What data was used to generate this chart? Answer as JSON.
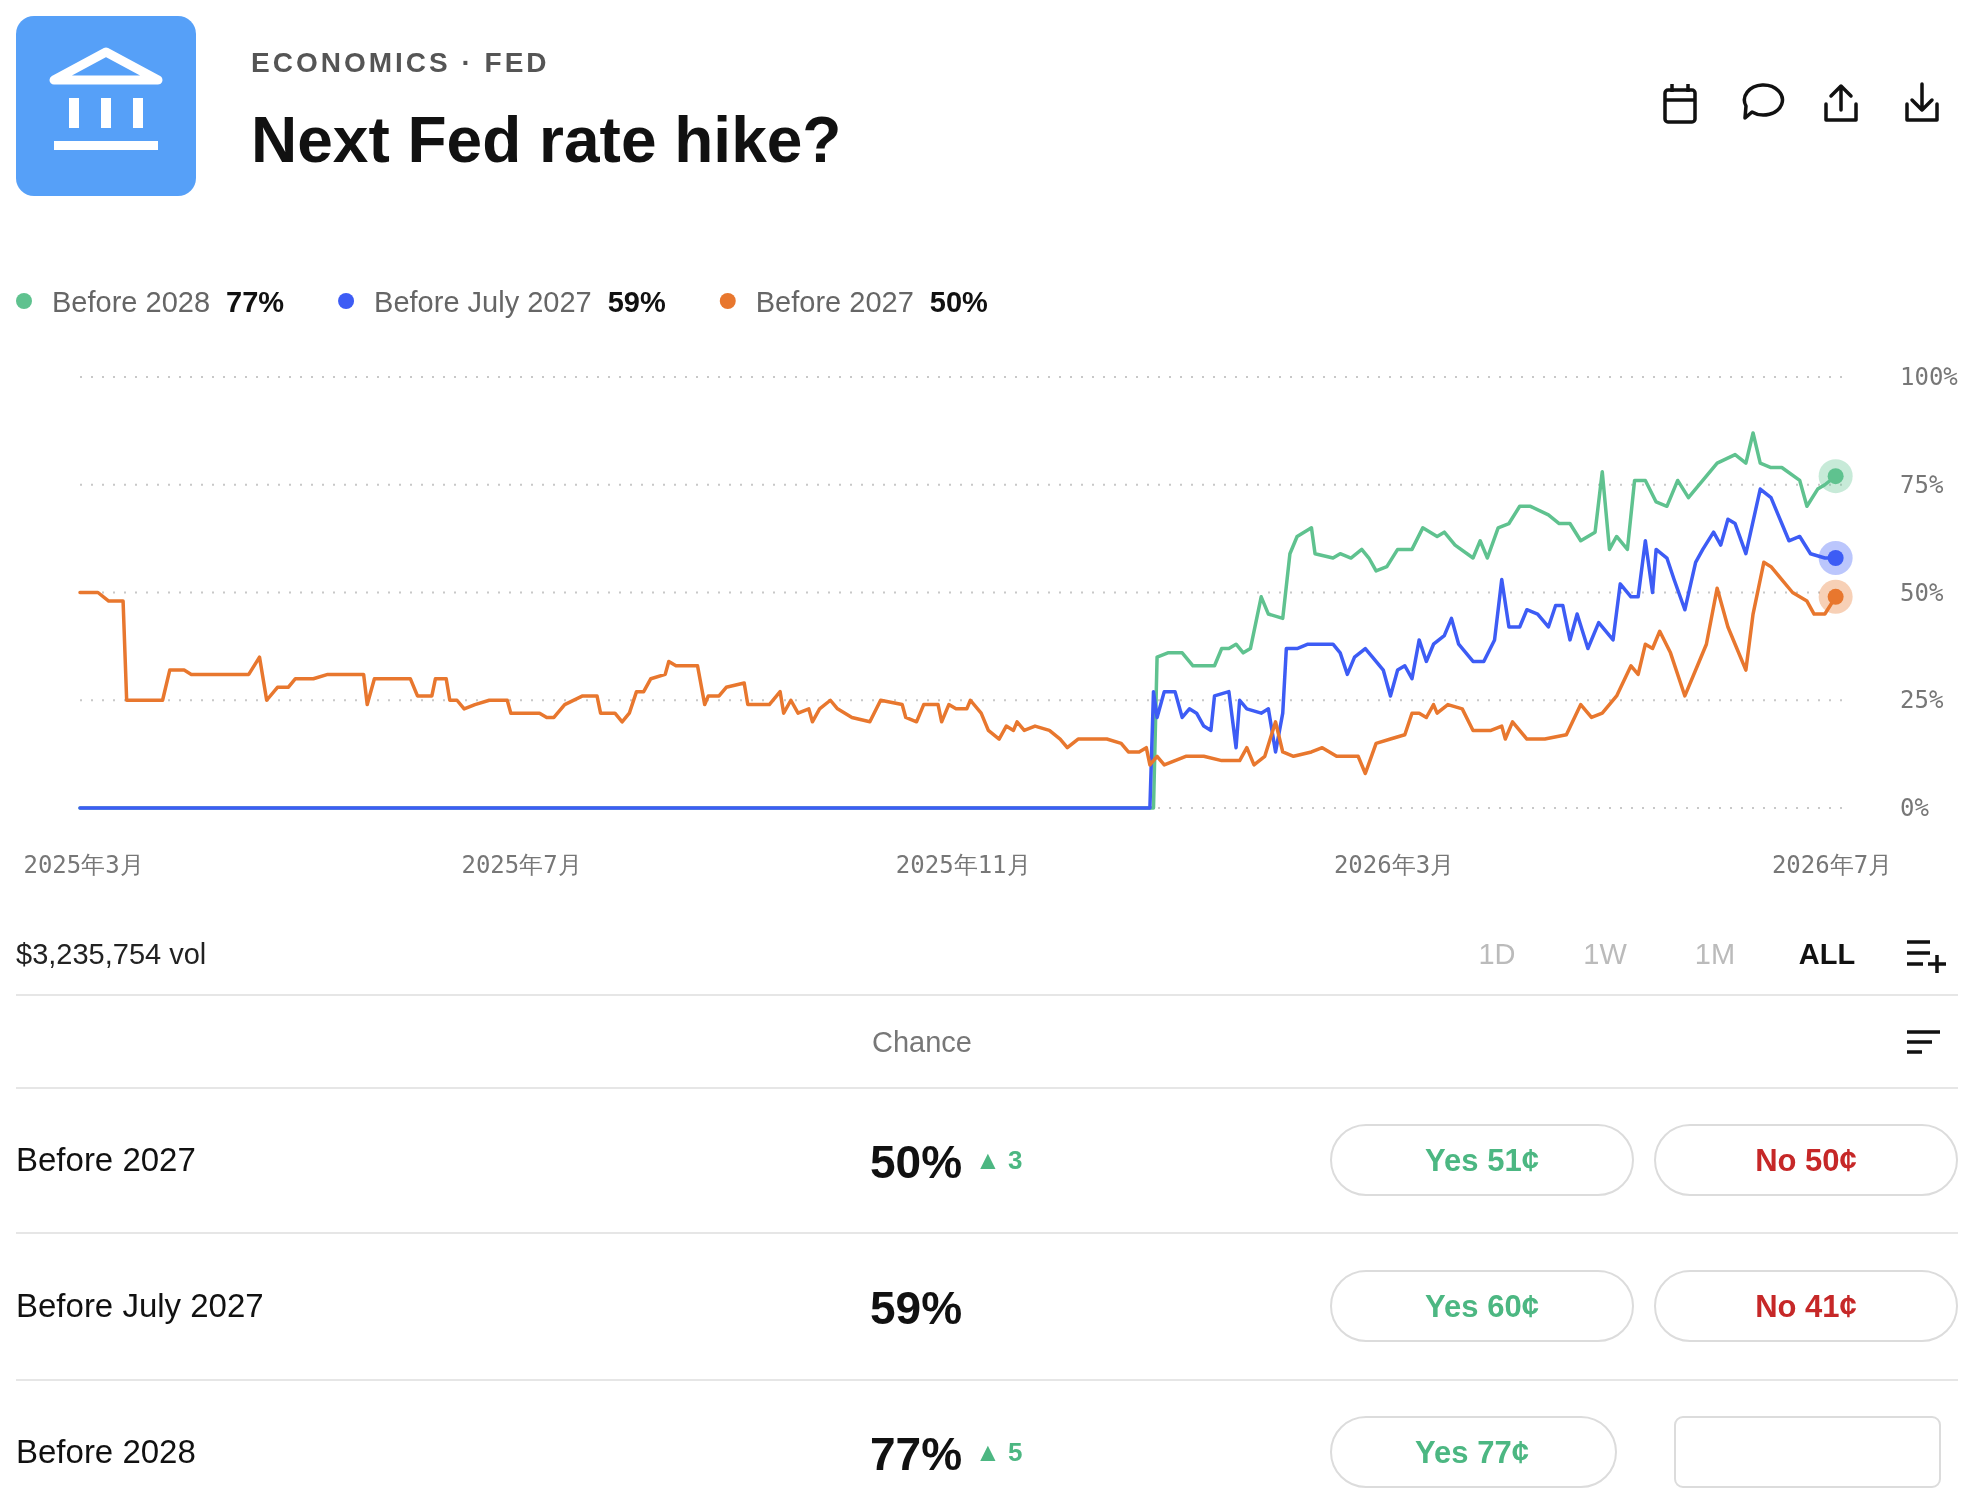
{
  "chart_data": {
    "type": "line",
    "title": "Next Fed rate hike?",
    "subtitle": "ECONOMICS · FED",
    "series": [
      {
        "name": "Before 2028",
        "color": "#5fc28f",
        "x": [
          "2025-02-28",
          "2025-12-24",
          "2025-12-25",
          "2025-12-28",
          "2026-01-01",
          "2026-01-04",
          "2026-01-10",
          "2026-01-12",
          "2026-01-14",
          "2026-01-16",
          "2026-01-18",
          "2026-01-20",
          "2026-01-23",
          "2026-01-25",
          "2026-01-29",
          "2026-01-31",
          "2026-02-02",
          "2026-02-06",
          "2026-02-07",
          "2026-02-12",
          "2026-02-14",
          "2026-02-17",
          "2026-02-20",
          "2026-02-22",
          "2026-02-24",
          "2026-02-27",
          "2026-03-02",
          "2026-03-06",
          "2026-03-09",
          "2026-03-13",
          "2026-03-15",
          "2026-03-18",
          "2026-03-23",
          "2026-03-25",
          "2026-03-27",
          "2026-03-30",
          "2026-04-02",
          "2026-04-05",
          "2026-04-08",
          "2026-04-13",
          "2026-04-16",
          "2026-04-19",
          "2026-04-22",
          "2026-04-26",
          "2026-04-28",
          "2026-04-30",
          "2026-05-02",
          "2026-05-05",
          "2026-05-07",
          "2026-05-10",
          "2026-05-13",
          "2026-05-16",
          "2026-05-19",
          "2026-05-22",
          "2026-05-26",
          "2026-05-30",
          "2026-06-04",
          "2026-06-07",
          "2026-06-09",
          "2026-06-11",
          "2026-06-14",
          "2026-06-17",
          "2026-06-22",
          "2026-06-24",
          "2026-06-27",
          "2026-06-29",
          "2026-07-02"
        ],
        "values": [
          0,
          0,
          35,
          36,
          36,
          33,
          33,
          37,
          37,
          38,
          36,
          37,
          49,
          45,
          44,
          59,
          63,
          65,
          59,
          58,
          59,
          58,
          60,
          58,
          55,
          56,
          60,
          60,
          65,
          63,
          64,
          61,
          58,
          62,
          58,
          65,
          66,
          70,
          70,
          68,
          66,
          66,
          62,
          64,
          78,
          60,
          63,
          60,
          76,
          76,
          71,
          70,
          76,
          72,
          76,
          80,
          82,
          80,
          87,
          80,
          79,
          79,
          76,
          70,
          74,
          75,
          77
        ]
      },
      {
        "name": "Before July 2027",
        "color": "#3d5cf5",
        "x": [
          "2025-02-28",
          "2025-12-23",
          "2025-12-24",
          "2025-12-25",
          "2025-12-27",
          "2025-12-30",
          "2026-01-01",
          "2026-01-03",
          "2026-01-05",
          "2026-01-07",
          "2026-01-09",
          "2026-01-10",
          "2026-01-14",
          "2026-01-16",
          "2026-01-17",
          "2026-01-19",
          "2026-01-23",
          "2026-01-25",
          "2026-01-27",
          "2026-01-29",
          "2026-01-30",
          "2026-02-02",
          "2026-02-05",
          "2026-02-08",
          "2026-02-12",
          "2026-02-14",
          "2026-02-16",
          "2026-02-18",
          "2026-02-21",
          "2026-02-23",
          "2026-02-26",
          "2026-02-28",
          "2026-03-02",
          "2026-03-04",
          "2026-03-06",
          "2026-03-08",
          "2026-03-10",
          "2026-03-12",
          "2026-03-15",
          "2026-03-17",
          "2026-03-19",
          "2026-03-23",
          "2026-03-26",
          "2026-03-29",
          "2026-03-31",
          "2026-04-02",
          "2026-04-05",
          "2026-04-07",
          "2026-04-10",
          "2026-04-13",
          "2026-04-15",
          "2026-04-17",
          "2026-04-19",
          "2026-04-21",
          "2026-04-24",
          "2026-04-27",
          "2026-05-01",
          "2026-05-03",
          "2026-05-06",
          "2026-05-08",
          "2026-05-10",
          "2026-05-12",
          "2026-05-13",
          "2026-05-16",
          "2026-05-18",
          "2026-05-21",
          "2026-05-24",
          "2026-05-26",
          "2026-05-29",
          "2026-05-31",
          "2026-06-02",
          "2026-06-04",
          "2026-06-07",
          "2026-06-11",
          "2026-06-14",
          "2026-06-17",
          "2026-06-19",
          "2026-06-22",
          "2026-06-25",
          "2026-06-29",
          "2026-07-02"
        ],
        "values": [
          0,
          0,
          27,
          21,
          27,
          27,
          21,
          23,
          22,
          19,
          18,
          26,
          27,
          14,
          25,
          23,
          22,
          23,
          13,
          22,
          37,
          37,
          38,
          38,
          38,
          36,
          31,
          35,
          37,
          35,
          32,
          26,
          32,
          33,
          30,
          39,
          34,
          38,
          40,
          44,
          38,
          34,
          34,
          39,
          53,
          42,
          42,
          46,
          45,
          42,
          47,
          47,
          39,
          45,
          37,
          43,
          39,
          52,
          49,
          49,
          62,
          50,
          60,
          58,
          53,
          46,
          57,
          60,
          64,
          61,
          67,
          66,
          59,
          74,
          72,
          66,
          62,
          63,
          59,
          58,
          58
        ]
      },
      {
        "name": "Before 2027",
        "color": "#e8772e",
        "x": [
          "2025-02-28",
          "2025-03-05",
          "2025-03-08",
          "2025-03-12",
          "2025-03-13",
          "2025-03-23",
          "2025-03-25",
          "2025-03-29",
          "2025-03-31",
          "2025-04-16",
          "2025-04-19",
          "2025-04-21",
          "2025-04-24",
          "2025-04-27",
          "2025-04-29",
          "2025-05-04",
          "2025-05-08",
          "2025-05-18",
          "2025-05-19",
          "2025-05-21",
          "2025-05-31",
          "2025-06-02",
          "2025-06-06",
          "2025-06-07",
          "2025-06-10",
          "2025-06-11",
          "2025-06-13",
          "2025-06-15",
          "2025-06-18",
          "2025-06-22",
          "2025-06-27",
          "2025-06-28",
          "2025-07-06",
          "2025-07-08",
          "2025-07-10",
          "2025-07-13",
          "2025-07-18",
          "2025-07-22",
          "2025-07-23",
          "2025-07-27",
          "2025-07-29",
          "2025-07-31",
          "2025-08-02",
          "2025-08-04",
          "2025-08-06",
          "2025-08-10",
          "2025-08-11",
          "2025-08-13",
          "2025-08-19",
          "2025-08-21",
          "2025-08-22",
          "2025-08-25",
          "2025-08-27",
          "2025-09-01",
          "2025-09-02",
          "2025-09-08",
          "2025-09-11",
          "2025-09-12",
          "2025-09-14",
          "2025-09-16",
          "2025-09-19",
          "2025-09-20",
          "2025-09-22",
          "2025-09-25",
          "2025-09-27",
          "2025-10-01",
          "2025-10-06",
          "2025-10-09",
          "2025-10-15",
          "2025-10-16",
          "2025-10-19",
          "2025-10-21",
          "2025-10-25",
          "2025-10-26",
          "2025-10-28",
          "2025-10-30",
          "2025-11-02",
          "2025-11-03",
          "2025-11-06",
          "2025-11-08",
          "2025-11-11",
          "2025-11-13",
          "2025-11-15",
          "2025-11-16",
          "2025-11-18",
          "2025-11-21",
          "2025-11-25",
          "2025-11-28",
          "2025-11-30",
          "2025-12-03",
          "2025-12-08",
          "2025-12-11",
          "2025-12-15",
          "2025-12-17",
          "2025-12-20",
          "2025-12-22",
          "2025-12-23",
          "2025-12-25",
          "2025-12-27",
          "2025-12-30",
          "2026-01-02",
          "2026-01-07",
          "2026-01-12",
          "2026-01-17",
          "2026-01-19",
          "2026-01-21",
          "2026-01-24",
          "2026-01-27",
          "2026-01-29",
          "2026-02-01",
          "2026-02-06",
          "2026-02-09",
          "2026-02-13",
          "2026-02-19",
          "2026-02-21",
          "2026-02-24",
          "2026-02-28",
          "2026-03-04",
          "2026-03-06",
          "2026-03-08",
          "2026-03-10",
          "2026-03-12",
          "2026-03-13",
          "2026-03-16",
          "2026-03-20",
          "2026-03-23",
          "2026-03-28",
          "2026-03-31",
          "2026-04-01",
          "2026-04-03",
          "2026-04-07",
          "2026-04-12",
          "2026-04-18",
          "2026-04-22",
          "2026-04-25",
          "2026-04-28",
          "2026-05-02",
          "2026-05-06",
          "2026-05-08",
          "2026-05-10",
          "2026-05-12",
          "2026-05-14",
          "2026-05-17",
          "2026-05-21",
          "2026-05-25",
          "2026-05-27",
          "2026-05-30",
          "2026-06-02",
          "2026-06-04",
          "2026-06-07",
          "2026-06-09",
          "2026-06-12",
          "2026-06-14",
          "2026-06-17",
          "2026-06-20",
          "2026-06-24",
          "2026-06-26",
          "2026-06-29",
          "2026-07-02"
        ],
        "values": [
          50,
          50,
          48,
          48,
          25,
          25,
          32,
          32,
          31,
          31,
          35,
          25,
          28,
          28,
          30,
          30,
          31,
          31,
          24,
          30,
          30,
          26,
          26,
          30,
          30,
          25,
          25,
          23,
          24,
          25,
          25,
          22,
          22,
          21,
          21,
          24,
          26,
          26,
          22,
          22,
          20,
          22,
          27,
          27,
          30,
          31,
          34,
          33,
          33,
          24,
          26,
          26,
          28,
          29,
          24,
          24,
          27,
          22,
          25,
          22,
          23,
          20,
          23,
          25,
          23,
          21,
          20,
          25,
          24,
          21,
          20,
          24,
          24,
          20,
          24,
          23,
          23,
          25,
          22,
          18,
          16,
          19,
          18,
          20,
          18,
          19,
          18,
          16,
          14,
          16,
          16,
          16,
          15,
          13,
          13,
          14,
          10,
          12,
          10,
          11,
          12,
          12,
          11,
          11,
          14,
          10,
          12,
          20,
          13,
          12,
          13,
          14,
          12,
          12,
          8,
          15,
          16,
          17,
          22,
          22,
          21,
          24,
          22,
          24,
          23,
          18,
          18,
          19,
          16,
          20,
          16,
          16,
          17,
          24,
          21,
          22,
          26,
          33,
          31,
          38,
          37,
          41,
          36,
          26,
          34,
          38,
          51,
          42,
          38,
          32,
          45,
          57,
          56,
          53,
          50,
          48,
          45,
          45,
          49
        ]
      }
    ],
    "xlim": [
      "2025-02-28",
      "2026-07-06"
    ],
    "xticks": [
      {
        "value": "2025-03-01",
        "label": "2025年3月"
      },
      {
        "value": "2025-07-01",
        "label": "2025年7月"
      },
      {
        "value": "2025-11-01",
        "label": "2025年11月"
      },
      {
        "value": "2026-03-01",
        "label": "2026年3月"
      },
      {
        "value": "2026-07-01",
        "label": "2026年7月"
      }
    ],
    "ylim": [
      0,
      100
    ],
    "yticks": [
      {
        "value": 0,
        "label": "0%"
      },
      {
        "value": 25,
        "label": "25%"
      },
      {
        "value": 50,
        "label": "50%"
      },
      {
        "value": 75,
        "label": "75%"
      },
      {
        "value": 100,
        "label": "100%"
      }
    ],
    "grid": "y",
    "legend": "top left",
    "annotations": [
      "77%",
      "59%",
      "50%",
      "$3,235,754 vol",
      "1D",
      "1W",
      "1M",
      "ALL",
      "Chance",
      "Before 2027",
      "50%",
      "▲ 3",
      "Yes 51¢",
      "No 50¢",
      "Before July 2027",
      "59%",
      "Yes 60¢",
      "No 41¢",
      "Before 2028",
      "77%",
      "▲ 5",
      "Yes 77¢"
    ]
  }
}
